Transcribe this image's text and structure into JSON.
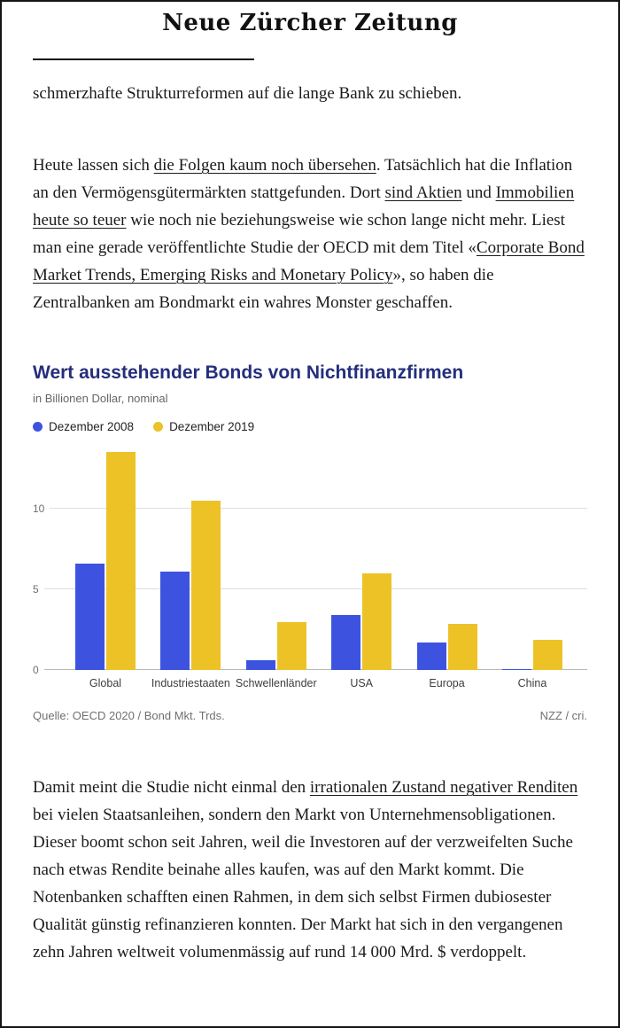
{
  "page": {
    "masthead": "Neue Zürcher Zeitung"
  },
  "article": {
    "paragraph_1": [
      {
        "text": "schmerzhafte Strukturreformen auf die lange Bank zu schieben.",
        "link": false
      }
    ],
    "paragraph_2": [
      {
        "text": "Heute lassen sich ",
        "link": false
      },
      {
        "text": "die Folgen kaum noch übersehen",
        "link": true
      },
      {
        "text": ". Tatsächlich hat die Inflation an den Vermögensgütermärkten stattgefunden. Dort ",
        "link": false
      },
      {
        "text": "sind Aktien",
        "link": true
      },
      {
        "text": " und ",
        "link": false
      },
      {
        "text": "Immobilien heute so teuer",
        "link": true
      },
      {
        "text": " wie noch nie beziehungsweise wie schon lange nicht mehr. Liest man eine gerade veröffentlichte Studie der OECD mit dem Titel «",
        "link": false
      },
      {
        "text": "Corporate Bond Market Trends, Emerging Risks and Monetary Policy",
        "link": true
      },
      {
        "text": "», so haben die Zentralbanken am Bondmarkt ein wahres Monster geschaffen.",
        "link": false
      }
    ],
    "paragraph_3": [
      {
        "text": "Damit meint die Studie nicht einmal den ",
        "link": false
      },
      {
        "text": "irrationalen Zustand negativer Renditen",
        "link": true
      },
      {
        "text": " bei vielen Staatsanleihen, sondern den Markt von Unternehmensobligationen. Dieser boomt schon seit Jahren, weil die Investoren auf der verzweifelten Suche nach etwas Rendite beinahe alles kaufen, was auf den Markt kommt. Die Notenbanken schafften einen Rahmen, in dem sich selbst Firmen dubiosester Qualität günstig refinanzieren konnten. Der Markt hat sich in den vergangenen zehn Jahren weltweit volumenmässig auf rund 14 000 Mrd. $ verdoppelt.",
        "link": false
      }
    ]
  },
  "chart": {
    "title": "Wert ausstehender Bonds von Nichtfinanzfirmen",
    "subtitle": "in Billionen Dollar, nominal",
    "source_left": "Quelle: OECD 2020 / Bond Mkt. Trds.",
    "source_right": "NZZ / cri."
  },
  "chart_data": {
    "type": "bar",
    "title": "Wert ausstehender Bonds von Nichtfinanzfirmen",
    "subtitle": "in Billionen Dollar, nominal",
    "title_color": "#242e7c",
    "categories": [
      "Global",
      "Industriestaaten",
      "Schwellenländer",
      "USA",
      "Europa",
      "China"
    ],
    "series": [
      {
        "name": "Dezember 2008",
        "color": "#3d53e0",
        "values": [
          6.6,
          6.1,
          0.6,
          3.4,
          1.7,
          0.1
        ]
      },
      {
        "name": "Dezember 2019",
        "color": "#ecc227",
        "values": [
          13.5,
          10.5,
          3.0,
          6.0,
          2.9,
          1.9
        ]
      }
    ],
    "ylim": [
      0,
      14
    ],
    "yticks": [
      0,
      5,
      10
    ],
    "grid": true,
    "legend_position": "top"
  }
}
